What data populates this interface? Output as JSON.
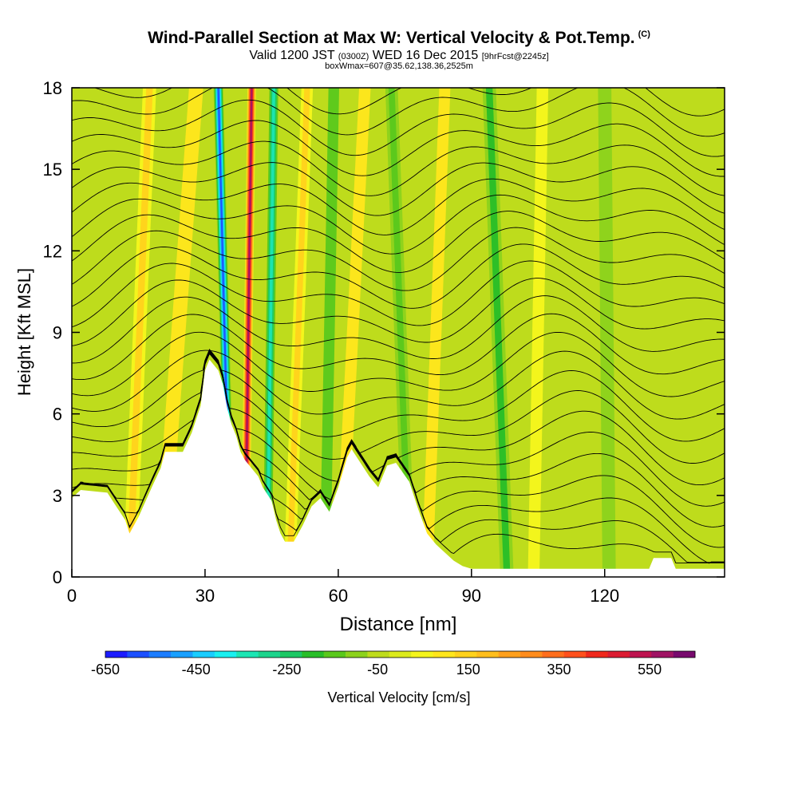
{
  "title": {
    "main": "Wind-Parallel Section at Max W: Vertical Velocity & Pot.Temp.",
    "copyright": "(C)",
    "valid": "Valid 1200 JST",
    "valid_z": "(0300Z)",
    "date": "WED 16 Dec 2015",
    "forecast": "[9hrFcst@2245z]",
    "box": "boxWmax=607@35.62,138.36,2525m"
  },
  "chart_data": {
    "type": "heatmap",
    "xlabel": "Distance [nm]",
    "ylabel": "Height [Kft MSL]",
    "xlim": [
      0,
      147
    ],
    "ylim": [
      0,
      18
    ],
    "x_ticks": [
      0,
      30,
      60,
      90,
      120
    ],
    "y_ticks": [
      0,
      3,
      6,
      9,
      12,
      15,
      18
    ],
    "terrain_profile": [
      [
        0,
        2.9
      ],
      [
        2,
        3.2
      ],
      [
        8,
        3.1
      ],
      [
        10,
        2.6
      ],
      [
        12,
        2.1
      ],
      [
        13,
        1.6
      ],
      [
        15,
        2.2
      ],
      [
        18,
        3.3
      ],
      [
        20,
        4.0
      ],
      [
        21,
        4.6
      ],
      [
        25,
        4.6
      ],
      [
        27,
        5.3
      ],
      [
        29,
        6.3
      ],
      [
        30,
        7.6
      ],
      [
        31,
        8.0
      ],
      [
        33,
        7.6
      ],
      [
        34,
        7.1
      ],
      [
        35,
        6.2
      ],
      [
        36,
        5.6
      ],
      [
        37,
        5.2
      ],
      [
        38,
        4.6
      ],
      [
        39,
        4.3
      ],
      [
        41,
        3.9
      ],
      [
        42,
        3.7
      ],
      [
        43,
        3.3
      ],
      [
        45,
        2.8
      ],
      [
        46,
        2.1
      ],
      [
        47,
        1.6
      ],
      [
        48,
        1.3
      ],
      [
        50,
        1.3
      ],
      [
        52,
        1.9
      ],
      [
        54,
        2.6
      ],
      [
        56,
        2.9
      ],
      [
        58,
        2.4
      ],
      [
        60,
        3.3
      ],
      [
        62,
        4.4
      ],
      [
        63,
        4.7
      ],
      [
        65,
        4.2
      ],
      [
        67,
        3.7
      ],
      [
        69,
        3.3
      ],
      [
        71,
        4.1
      ],
      [
        73,
        4.2
      ],
      [
        76,
        3.5
      ],
      [
        78,
        2.5
      ],
      [
        80,
        1.6
      ],
      [
        82,
        1.2
      ],
      [
        84,
        0.9
      ],
      [
        86,
        0.6
      ],
      [
        88,
        0.4
      ],
      [
        90,
        0.3
      ],
      [
        130,
        0.3
      ],
      [
        131,
        0.7
      ],
      [
        135,
        0.7
      ],
      [
        136,
        0.3
      ],
      [
        147,
        0.3
      ]
    ],
    "vertical_velocity_bands": [
      {
        "x_top": 17.5,
        "x_bottom": 13.0,
        "width": 3.0,
        "w": 150
      },
      {
        "x_top": 28.0,
        "x_bottom": 20.0,
        "width": 3.2,
        "w": 120
      },
      {
        "x_top": 33.0,
        "x_bottom": 35.8,
        "width": 2.2,
        "w": -600
      },
      {
        "x_top": 40.5,
        "x_bottom": 39.0,
        "width": 1.9,
        "w": 607
      },
      {
        "x_top": 45.5,
        "x_bottom": 44.0,
        "width": 2.0,
        "w": -320
      },
      {
        "x_top": 53.0,
        "x_bottom": 49.0,
        "width": 2.6,
        "w": 160
      },
      {
        "x_top": 59.0,
        "x_bottom": 57.0,
        "width": 2.4,
        "w": -120
      },
      {
        "x_top": 66.0,
        "x_bottom": 60.5,
        "width": 2.6,
        "w": 130
      },
      {
        "x_top": 72.0,
        "x_bottom": 76.0,
        "width": 2.8,
        "w": -150
      },
      {
        "x_top": 84.0,
        "x_bottom": 80.0,
        "width": 2.5,
        "w": 100
      },
      {
        "x_top": 94.0,
        "x_bottom": 98.0,
        "width": 3.0,
        "w": -200
      },
      {
        "x_top": 106.0,
        "x_bottom": 104.0,
        "width": 2.6,
        "w": 90
      },
      {
        "x_top": 120.0,
        "x_bottom": 121.0,
        "width": 3.0,
        "w": -80
      }
    ],
    "theta_contour_levels": 26,
    "colorbar": {
      "label": "Vertical Velocity [cm/s]",
      "min": -650,
      "max": 650,
      "step": 50,
      "tick_labels": [
        "-650",
        "-450",
        "-250",
        "-50",
        "150",
        "350",
        "550"
      ],
      "colors": [
        "#1c1cff",
        "#1c50ff",
        "#1c7dff",
        "#19a0ff",
        "#19cdff",
        "#19f0f0",
        "#1ce6b4",
        "#1cd48c",
        "#1cc864",
        "#28be28",
        "#5ac81c",
        "#8cd21c",
        "#bedc1c",
        "#dceb1c",
        "#f5f51c",
        "#ffe61c",
        "#ffd21c",
        "#ffbe1c",
        "#ffa01c",
        "#ff8c1c",
        "#ff6e1c",
        "#ff501c",
        "#f0281c",
        "#dc1c32",
        "#be1450",
        "#a01464",
        "#780a6e"
      ]
    },
    "background_value": -30
  }
}
